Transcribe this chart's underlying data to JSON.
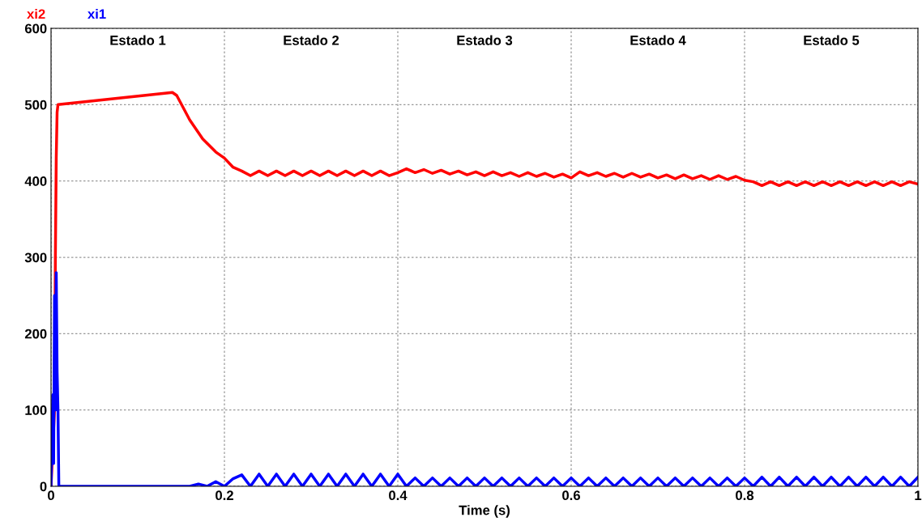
{
  "chart_data": {
    "type": "line",
    "xlabel": "Time (s)",
    "xlim": [
      0,
      1
    ],
    "xticks": [
      0,
      0.2,
      0.4,
      0.6,
      0.8,
      1
    ],
    "ylim": [
      0,
      600
    ],
    "yticks": [
      0,
      100,
      200,
      300,
      400,
      500,
      600
    ],
    "grid": true,
    "legend": "top left",
    "line_style": "solid",
    "annotations": [
      "Estado 1",
      "Estado 2",
      "Estado 3",
      "Estado 4",
      "Estado 5"
    ],
    "series": [
      {
        "name": "xi2",
        "color": "#ff0000",
        "x": [
          0,
          0.004,
          0.005,
          0.006,
          0.007,
          0.008,
          0.14,
          0.145,
          0.16,
          0.175,
          0.19,
          0.2,
          0.21,
          0.22,
          0.23,
          0.24,
          0.25,
          0.26,
          0.27,
          0.28,
          0.29,
          0.3,
          0.31,
          0.32,
          0.33,
          0.34,
          0.35,
          0.36,
          0.37,
          0.38,
          0.39,
          0.4,
          0.41,
          0.42,
          0.43,
          0.44,
          0.45,
          0.46,
          0.47,
          0.48,
          0.49,
          0.5,
          0.51,
          0.52,
          0.53,
          0.54,
          0.55,
          0.56,
          0.57,
          0.58,
          0.59,
          0.6,
          0.61,
          0.62,
          0.63,
          0.64,
          0.65,
          0.66,
          0.67,
          0.68,
          0.69,
          0.7,
          0.71,
          0.72,
          0.73,
          0.74,
          0.75,
          0.76,
          0.77,
          0.78,
          0.79,
          0.8,
          0.81,
          0.82,
          0.83,
          0.84,
          0.85,
          0.86,
          0.87,
          0.88,
          0.89,
          0.9,
          0.91,
          0.92,
          0.93,
          0.94,
          0.95,
          0.96,
          0.97,
          0.98,
          0.99,
          1.0
        ],
        "values": [
          0,
          100,
          300,
          430,
          490,
          500,
          516,
          512,
          480,
          455,
          438,
          430,
          418,
          413,
          407,
          413,
          407,
          413,
          407,
          413,
          407,
          413,
          407,
          413,
          407,
          413,
          407,
          413,
          407,
          413,
          407,
          411,
          416,
          411,
          415,
          410,
          414,
          409,
          413,
          408,
          412,
          407,
          412,
          407,
          411,
          406,
          411,
          406,
          410,
          405,
          409,
          404,
          412,
          407,
          411,
          406,
          410,
          405,
          410,
          405,
          409,
          404,
          408,
          403,
          408,
          403,
          407,
          402,
          407,
          402,
          406,
          401,
          399,
          394,
          399,
          394,
          399,
          394,
          399,
          394,
          399,
          394,
          399,
          394,
          399,
          394,
          399,
          394,
          399,
          394,
          399,
          396
        ]
      },
      {
        "name": "xi1",
        "color": "#0000ff",
        "x": [
          0,
          0.002,
          0.003,
          0.004,
          0.005,
          0.006,
          0.007,
          0.008,
          0.009,
          0.16,
          0.17,
          0.18,
          0.19,
          0.2,
          0.21,
          0.22,
          0.23,
          0.24,
          0.25,
          0.26,
          0.27,
          0.28,
          0.29,
          0.3,
          0.31,
          0.32,
          0.33,
          0.34,
          0.35,
          0.36,
          0.37,
          0.38,
          0.39,
          0.4,
          0.41,
          0.42,
          0.43,
          0.44,
          0.45,
          0.46,
          0.47,
          0.48,
          0.49,
          0.5,
          0.51,
          0.52,
          0.53,
          0.54,
          0.55,
          0.56,
          0.57,
          0.58,
          0.59,
          0.6,
          0.61,
          0.62,
          0.63,
          0.64,
          0.65,
          0.66,
          0.67,
          0.68,
          0.69,
          0.7,
          0.71,
          0.72,
          0.73,
          0.74,
          0.75,
          0.76,
          0.77,
          0.78,
          0.79,
          0.8,
          0.81,
          0.82,
          0.83,
          0.84,
          0.85,
          0.86,
          0.87,
          0.88,
          0.89,
          0.9,
          0.91,
          0.92,
          0.93,
          0.94,
          0.95,
          0.96,
          0.97,
          0.98,
          0.99,
          1.0
        ],
        "values": [
          0,
          120,
          30,
          250,
          100,
          280,
          150,
          100,
          0,
          0,
          3,
          0,
          6,
          0,
          10,
          15,
          0,
          16,
          0,
          16,
          0,
          16,
          0,
          16,
          0,
          16,
          0,
          16,
          0,
          16,
          0,
          16,
          0,
          16,
          0,
          11,
          0,
          11,
          0,
          11,
          0,
          11,
          0,
          11,
          0,
          11,
          0,
          11,
          0,
          11,
          0,
          11,
          0,
          11,
          0,
          11,
          0,
          11,
          0,
          11,
          0,
          11,
          0,
          11,
          0,
          11,
          0,
          11,
          0,
          11,
          0,
          11,
          0,
          11,
          0,
          12,
          0,
          12,
          0,
          12,
          0,
          12,
          0,
          12,
          0,
          12,
          0,
          12,
          0,
          12,
          0,
          12,
          0,
          12
        ]
      }
    ]
  }
}
